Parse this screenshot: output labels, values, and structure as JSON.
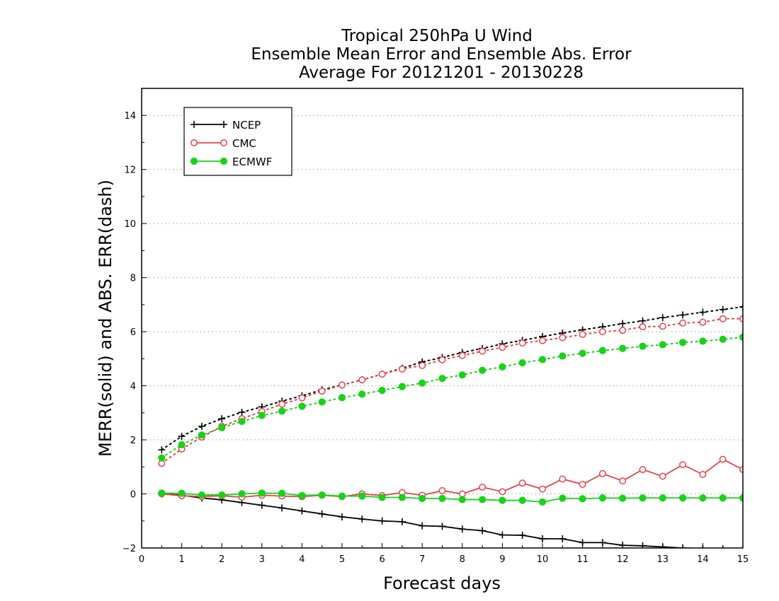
{
  "chart_data": {
    "type": "line",
    "title": "Tropical 250hPa U Wind",
    "subtitle": "Ensemble Mean Error and Ensemble Abs. Error",
    "subtitle2": "Average For 20121201 - 20130228",
    "xlabel": "Forecast days",
    "ylabel": "MERR(solid) and ABS. ERR(dash)",
    "xlim": [
      0,
      15
    ],
    "ylim": [
      -2,
      15
    ],
    "xticks": [
      0,
      1,
      2,
      3,
      4,
      5,
      6,
      7,
      8,
      9,
      10,
      11,
      12,
      13,
      14,
      15
    ],
    "yticks": [
      -2,
      0,
      2,
      4,
      6,
      8,
      10,
      12,
      14
    ],
    "grid": "horizontal dotted",
    "legend_position": "top-left",
    "x": [
      0.5,
      1,
      1.5,
      2,
      2.5,
      3,
      3.5,
      4,
      4.5,
      5,
      5.5,
      6,
      6.5,
      7,
      7.5,
      8,
      8.5,
      9,
      9.5,
      10,
      10.5,
      11,
      11.5,
      12,
      12.5,
      13,
      13.5,
      14,
      14.5,
      15
    ],
    "series": [
      {
        "name": "NCEP",
        "color": "#000000",
        "marker": "plus",
        "mean_error": [
          0.0,
          -0.05,
          -0.15,
          -0.22,
          -0.32,
          -0.42,
          -0.52,
          -0.63,
          -0.74,
          -0.85,
          -0.93,
          -1.0,
          -1.03,
          -1.18,
          -1.2,
          -1.3,
          -1.36,
          -1.52,
          -1.53,
          -1.66,
          -1.66,
          -1.8,
          -1.8,
          -1.9,
          -1.92,
          -1.96,
          -2.0,
          -2.02,
          -2.04,
          -2.06
        ],
        "abs_error": [
          1.63,
          2.13,
          2.5,
          2.78,
          3.02,
          3.22,
          3.43,
          3.63,
          3.85,
          4.03,
          4.22,
          4.43,
          4.65,
          4.88,
          5.05,
          5.23,
          5.38,
          5.55,
          5.68,
          5.82,
          5.95,
          6.07,
          6.18,
          6.3,
          6.4,
          6.52,
          6.62,
          6.72,
          6.82,
          6.92
        ]
      },
      {
        "name": "CMC",
        "color": "#e8424a",
        "marker": "open-circle",
        "mean_error": [
          0.0,
          -0.07,
          -0.1,
          -0.07,
          -0.12,
          -0.05,
          -0.08,
          -0.1,
          -0.05,
          -0.1,
          0.0,
          -0.06,
          0.05,
          -0.05,
          0.12,
          0.0,
          0.25,
          0.08,
          0.4,
          0.18,
          0.55,
          0.35,
          0.75,
          0.48,
          0.9,
          0.65,
          1.08,
          0.72,
          1.28,
          0.9
        ],
        "abs_error": [
          1.13,
          1.66,
          2.1,
          2.5,
          2.78,
          3.05,
          3.32,
          3.55,
          3.8,
          4.03,
          4.22,
          4.43,
          4.62,
          4.75,
          4.96,
          5.12,
          5.28,
          5.42,
          5.58,
          5.67,
          5.78,
          5.9,
          6.0,
          6.05,
          6.18,
          6.2,
          6.32,
          6.35,
          6.48,
          6.48
        ]
      },
      {
        "name": "ECMWF",
        "color": "#19d219",
        "marker": "filled-circle",
        "mean_error": [
          0.03,
          0.02,
          -0.04,
          -0.04,
          0.0,
          0.03,
          0.02,
          -0.06,
          -0.04,
          -0.08,
          -0.08,
          -0.13,
          -0.13,
          -0.17,
          -0.17,
          -0.21,
          -0.21,
          -0.24,
          -0.24,
          -0.3,
          -0.16,
          -0.18,
          -0.15,
          -0.16,
          -0.15,
          -0.15,
          -0.15,
          -0.15,
          -0.15,
          -0.15
        ],
        "abs_error": [
          1.33,
          1.82,
          2.18,
          2.45,
          2.68,
          2.9,
          3.06,
          3.24,
          3.4,
          3.56,
          3.69,
          3.83,
          3.97,
          4.1,
          4.27,
          4.4,
          4.57,
          4.7,
          4.85,
          4.97,
          5.1,
          5.2,
          5.3,
          5.38,
          5.46,
          5.52,
          5.6,
          5.65,
          5.72,
          5.8
        ]
      }
    ]
  }
}
